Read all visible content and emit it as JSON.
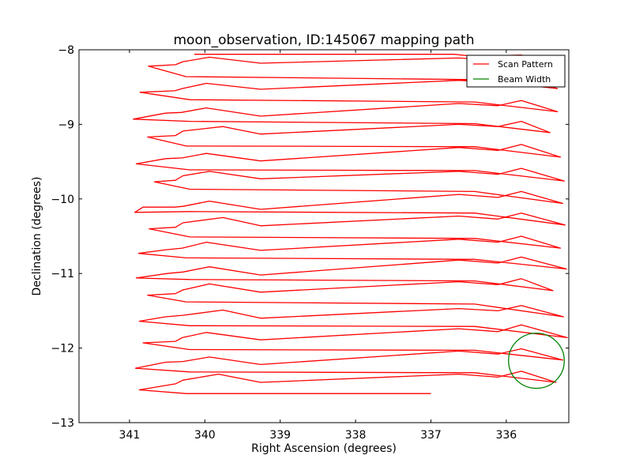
{
  "chart_data": {
    "type": "line",
    "title": "moon_observation, ID:145067 mapping path",
    "xlabel": "Right Ascension (degrees)",
    "ylabel": "Declination (degrees)",
    "xlim": [
      341.67,
      335.17
    ],
    "ylim": [
      -13,
      -8
    ],
    "x_inverted": true,
    "xticks": [
      341,
      340,
      339,
      338,
      337,
      336
    ],
    "xtick_labels": [
      "341",
      "340",
      "339",
      "338",
      "337",
      "336"
    ],
    "yticks": [
      -8,
      -9,
      -10,
      -11,
      -12,
      -13
    ],
    "ytick_labels": [
      "−8",
      "−9",
      "−10",
      "−11",
      "−12",
      "−13"
    ],
    "grid": false,
    "legend": {
      "position": "top-right",
      "entries": [
        {
          "label": "Scan Pattern",
          "color": "#ff0000"
        },
        {
          "label": "Beam Width",
          "color": "#008000"
        }
      ]
    },
    "series": [
      {
        "name": "Scan Pattern",
        "color": "#ff0000",
        "points": [
          [
            340.14,
            -8.06
          ],
          [
            336.69,
            -8.06
          ],
          [
            336.42,
            -8.09
          ],
          [
            335.8,
            -8.07
          ],
          [
            335.32,
            -8.22
          ],
          [
            335.8,
            -8.07
          ],
          [
            336.11,
            -8.14
          ],
          [
            336.63,
            -8.11
          ],
          [
            339.26,
            -8.18
          ],
          [
            339.94,
            -8.1
          ],
          [
            340.29,
            -8.16
          ],
          [
            340.39,
            -8.2
          ],
          [
            340.75,
            -8.22
          ],
          [
            340.25,
            -8.36
          ],
          [
            336.42,
            -8.4
          ],
          [
            335.32,
            -8.52
          ],
          [
            335.8,
            -8.37
          ],
          [
            336.11,
            -8.44
          ],
          [
            336.63,
            -8.41
          ],
          [
            339.26,
            -8.53
          ],
          [
            339.98,
            -8.45
          ],
          [
            340.3,
            -8.52
          ],
          [
            340.4,
            -8.55
          ],
          [
            340.86,
            -8.57
          ],
          [
            340.2,
            -8.67
          ],
          [
            336.42,
            -8.7
          ],
          [
            335.32,
            -8.83
          ],
          [
            335.8,
            -8.68
          ],
          [
            336.11,
            -8.75
          ],
          [
            336.63,
            -8.72
          ],
          [
            339.26,
            -8.89
          ],
          [
            339.98,
            -8.78
          ],
          [
            340.31,
            -8.84
          ],
          [
            340.52,
            -8.85
          ],
          [
            340.95,
            -8.93
          ],
          [
            340.2,
            -8.96
          ],
          [
            336.42,
            -8.99
          ],
          [
            335.42,
            -9.11
          ],
          [
            335.8,
            -8.96
          ],
          [
            336.11,
            -9.03
          ],
          [
            336.63,
            -9.0
          ],
          [
            339.26,
            -9.13
          ],
          [
            339.76,
            -9.03
          ],
          [
            340.29,
            -9.09
          ],
          [
            340.39,
            -9.15
          ],
          [
            340.76,
            -9.17
          ],
          [
            340.25,
            -9.29
          ],
          [
            336.42,
            -9.3
          ],
          [
            335.28,
            -9.44
          ],
          [
            335.8,
            -9.27
          ],
          [
            336.11,
            -9.35
          ],
          [
            336.63,
            -9.31
          ],
          [
            339.26,
            -9.49
          ],
          [
            339.98,
            -9.39
          ],
          [
            340.3,
            -9.45
          ],
          [
            340.52,
            -9.46
          ],
          [
            340.91,
            -9.53
          ],
          [
            340.2,
            -9.61
          ],
          [
            336.42,
            -9.62
          ],
          [
            335.23,
            -9.76
          ],
          [
            335.8,
            -9.59
          ],
          [
            336.11,
            -9.67
          ],
          [
            336.63,
            -9.63
          ],
          [
            339.26,
            -9.73
          ],
          [
            339.94,
            -9.63
          ],
          [
            340.29,
            -9.69
          ],
          [
            340.39,
            -9.75
          ],
          [
            340.67,
            -9.77
          ],
          [
            340.2,
            -9.87
          ],
          [
            336.42,
            -9.9
          ],
          [
            335.25,
            -10.06
          ],
          [
            335.8,
            -9.9
          ],
          [
            336.11,
            -9.98
          ],
          [
            336.63,
            -9.94
          ],
          [
            339.26,
            -10.14
          ],
          [
            339.94,
            -10.03
          ],
          [
            340.29,
            -10.1
          ],
          [
            340.4,
            -10.11
          ],
          [
            340.82,
            -10.11
          ],
          [
            340.93,
            -10.18
          ],
          [
            340.2,
            -10.17
          ],
          [
            336.42,
            -10.19
          ],
          [
            335.22,
            -10.35
          ],
          [
            335.8,
            -10.19
          ],
          [
            336.11,
            -10.27
          ],
          [
            336.63,
            -10.23
          ],
          [
            339.26,
            -10.36
          ],
          [
            339.76,
            -10.25
          ],
          [
            340.29,
            -10.32
          ],
          [
            340.39,
            -10.38
          ],
          [
            340.74,
            -10.4
          ],
          [
            340.2,
            -10.51
          ],
          [
            336.42,
            -10.53
          ],
          [
            335.28,
            -10.66
          ],
          [
            335.8,
            -10.5
          ],
          [
            336.11,
            -10.58
          ],
          [
            336.63,
            -10.54
          ],
          [
            339.26,
            -10.69
          ],
          [
            339.98,
            -10.58
          ],
          [
            340.3,
            -10.66
          ],
          [
            340.5,
            -10.68
          ],
          [
            340.88,
            -10.73
          ],
          [
            340.25,
            -10.79
          ],
          [
            336.42,
            -10.81
          ],
          [
            335.2,
            -10.94
          ],
          [
            335.8,
            -10.78
          ],
          [
            336.11,
            -10.86
          ],
          [
            336.63,
            -10.82
          ],
          [
            339.26,
            -11.02
          ],
          [
            339.94,
            -10.91
          ],
          [
            340.29,
            -10.98
          ],
          [
            340.5,
            -11.0
          ],
          [
            340.91,
            -11.06
          ],
          [
            340.2,
            -11.08
          ],
          [
            336.42,
            -11.1
          ],
          [
            335.38,
            -11.23
          ],
          [
            335.8,
            -11.07
          ],
          [
            336.11,
            -11.15
          ],
          [
            336.63,
            -11.11
          ],
          [
            339.26,
            -11.25
          ],
          [
            339.94,
            -11.14
          ],
          [
            340.29,
            -11.22
          ],
          [
            340.39,
            -11.27
          ],
          [
            340.76,
            -11.29
          ],
          [
            340.25,
            -11.38
          ],
          [
            336.42,
            -11.41
          ],
          [
            335.24,
            -11.58
          ],
          [
            335.8,
            -11.43
          ],
          [
            336.11,
            -11.5
          ],
          [
            336.63,
            -11.47
          ],
          [
            339.26,
            -11.6
          ],
          [
            339.76,
            -11.49
          ],
          [
            340.29,
            -11.56
          ],
          [
            340.52,
            -11.58
          ],
          [
            340.87,
            -11.64
          ],
          [
            340.2,
            -11.7
          ],
          [
            336.42,
            -11.71
          ],
          [
            335.19,
            -11.86
          ],
          [
            335.8,
            -11.69
          ],
          [
            336.11,
            -11.78
          ],
          [
            336.63,
            -11.74
          ],
          [
            339.26,
            -11.89
          ],
          [
            339.98,
            -11.79
          ],
          [
            340.3,
            -11.86
          ],
          [
            340.39,
            -11.91
          ],
          [
            340.82,
            -11.93
          ],
          [
            340.2,
            -12.02
          ],
          [
            336.42,
            -12.03
          ],
          [
            335.25,
            -12.16
          ],
          [
            335.8,
            -12.01
          ],
          [
            336.11,
            -12.08
          ],
          [
            336.63,
            -12.04
          ],
          [
            339.26,
            -12.22
          ],
          [
            339.94,
            -12.12
          ],
          [
            340.29,
            -12.18
          ],
          [
            340.52,
            -12.19
          ],
          [
            340.92,
            -12.27
          ],
          [
            340.2,
            -12.32
          ],
          [
            336.42,
            -12.33
          ],
          [
            335.34,
            -12.46
          ],
          [
            335.8,
            -12.31
          ],
          [
            336.11,
            -12.39
          ],
          [
            336.63,
            -12.35
          ],
          [
            339.26,
            -12.46
          ],
          [
            339.82,
            -12.35
          ],
          [
            340.29,
            -12.43
          ],
          [
            340.39,
            -12.48
          ],
          [
            340.87,
            -12.56
          ],
          [
            340.25,
            -12.61
          ],
          [
            337.0,
            -12.61
          ]
        ]
      },
      {
        "name": "Beam Width",
        "color": "#008000",
        "shape": "circle",
        "center": [
          335.6,
          -12.17
        ],
        "radius_deg": 0.37
      }
    ]
  }
}
